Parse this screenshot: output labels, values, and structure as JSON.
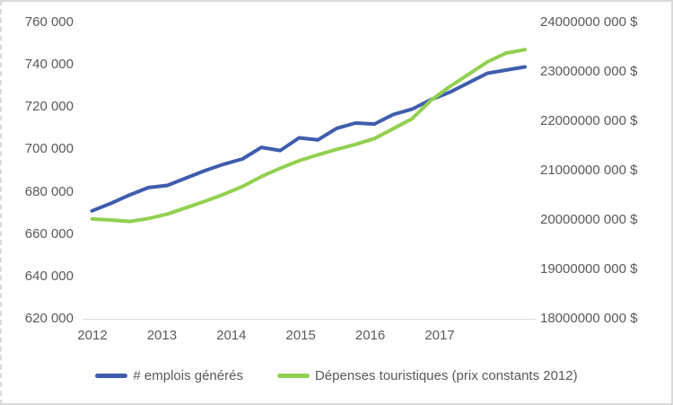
{
  "chart_data": {
    "type": "line",
    "title": "",
    "categories": [
      "2012Q1",
      "2012Q2",
      "2012Q3",
      "2012Q4",
      "2013Q1",
      "2013Q2",
      "2013Q3",
      "2013Q4",
      "2014Q1",
      "2014Q2",
      "2014Q3",
      "2014Q4",
      "2015Q1",
      "2015Q2",
      "2015Q3",
      "2015Q4",
      "2016Q1",
      "2016Q2",
      "2016Q3",
      "2016Q4",
      "2017Q1",
      "2017Q2",
      "2017Q3",
      "2017Q4"
    ],
    "x_tick_labels": [
      "2012",
      "2013",
      "2014",
      "2015",
      "2016",
      "2017"
    ],
    "series": [
      {
        "name": "# emplois générés",
        "axis": "left",
        "color": "#3f5dad",
        "values": [
          671000,
          674500,
          678500,
          682000,
          683000,
          686500,
          690000,
          693000,
          695500,
          701000,
          699500,
          705500,
          704500,
          710000,
          712500,
          712000,
          716500,
          719000,
          723500,
          727000,
          731500,
          736000,
          737500,
          739000
        ]
      },
      {
        "name": "Dépenses touristiques (prix constants 2012)",
        "axis": "right",
        "color": "#92d050",
        "values": [
          20020000000,
          20000000000,
          19970000000,
          20030000000,
          20120000000,
          20250000000,
          20380000000,
          20520000000,
          20680000000,
          20880000000,
          21050000000,
          21200000000,
          21320000000,
          21430000000,
          21530000000,
          21650000000,
          21850000000,
          22050000000,
          22420000000,
          22700000000,
          22950000000,
          23200000000,
          23380000000,
          23450000000
        ]
      }
    ],
    "left_axis": {
      "min": 620000,
      "max": 760000,
      "step": 20000,
      "tick_labels": [
        "760 000",
        "740 000",
        "720 000",
        "700 000",
        "680 000",
        "660 000",
        "640 000",
        "620 000"
      ]
    },
    "right_axis": {
      "min": 18000000000,
      "max": 24000000000,
      "step": 1000000000,
      "tick_labels": [
        "24000000 000 $",
        "23000000 000 $",
        "22000000 000 $",
        "21000000 000 $",
        "20000000 000 $",
        "19000000 000 $",
        "18000000 000 $"
      ]
    },
    "grid": "off",
    "legend_position": "bottom"
  },
  "colors": {
    "axis_text": "#595959",
    "axis_line": "#d9d9d9",
    "frame_border": "#d9d9d9",
    "background": "#ffffff"
  }
}
